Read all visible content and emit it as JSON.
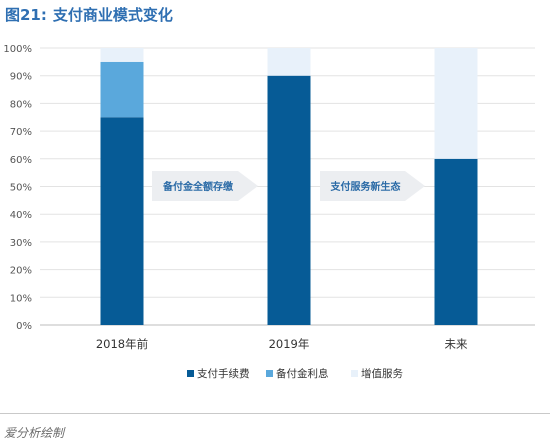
{
  "header": {
    "figure_label": "图21:",
    "title": "支付商业模式变化"
  },
  "footer": {
    "source": "爱分析绘制"
  },
  "chart_data": {
    "type": "bar",
    "stacked": true,
    "categories": [
      "2018年前",
      "2019年",
      "未来"
    ],
    "series": [
      {
        "name": "支付手续费",
        "values": [
          75,
          90,
          60
        ],
        "color": "#065b96"
      },
      {
        "name": "备付金利息",
        "values": [
          20,
          0,
          0
        ],
        "color": "#5aa8dc"
      },
      {
        "name": "增值服务",
        "values": [
          5,
          10,
          40
        ],
        "color": "#e8f1fa"
      }
    ],
    "ylim": [
      0,
      100
    ],
    "yticks": [
      "0%",
      "10%",
      "20%",
      "30%",
      "40%",
      "50%",
      "60%",
      "70%",
      "80%",
      "90%",
      "100%"
    ],
    "legend_position": "bottom",
    "annotations": [
      "备付金全额存缴",
      "支付服务新生态"
    ]
  }
}
